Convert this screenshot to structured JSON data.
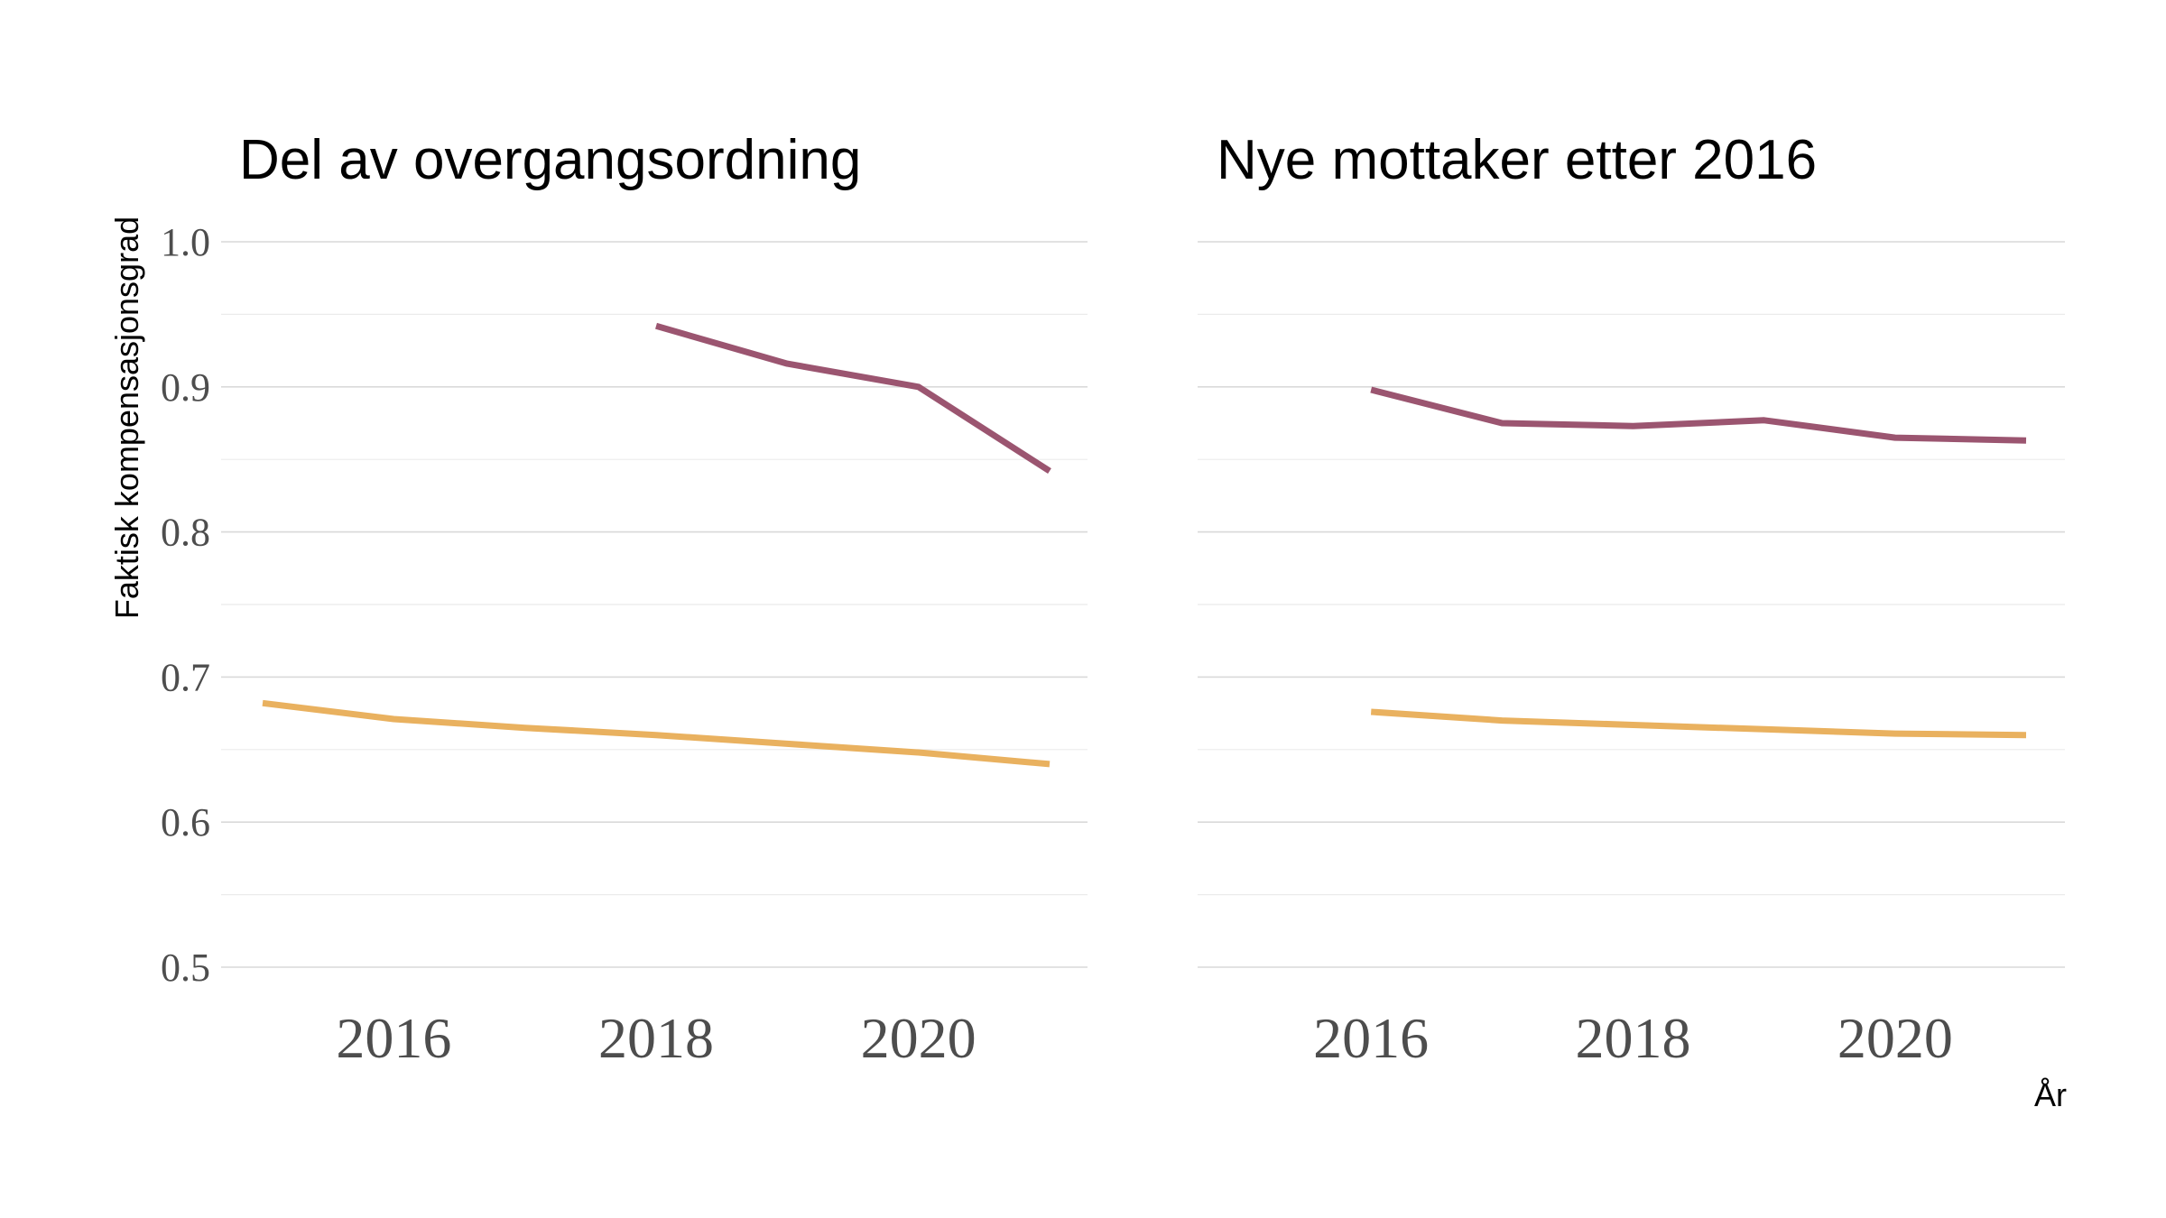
{
  "chart_data": [
    {
      "type": "line",
      "title": "Del av overgangsordning",
      "ylabel": "Faktisk kompensasjonsgrad",
      "xlabel": "",
      "ylim": [
        0.5,
        1.0
      ],
      "xlim": [
        2015,
        2021
      ],
      "xticks": [
        2016,
        2018,
        2020
      ],
      "yticks": [
        0.5,
        0.6,
        0.7,
        0.8,
        0.9,
        1.0
      ],
      "ytick_labels": [
        "0.5",
        "0.6",
        "0.7",
        "0.8",
        "0.9",
        "1.0"
      ],
      "grid": true,
      "series": [
        {
          "color": "#9b5570",
          "x": [
            2018,
            2019,
            2020,
            2021
          ],
          "y": [
            0.942,
            0.916,
            0.9,
            0.842
          ]
        },
        {
          "color": "#e9b15f",
          "x": [
            2015,
            2016,
            2017,
            2018,
            2019,
            2020,
            2021
          ],
          "y": [
            0.682,
            0.671,
            0.665,
            0.66,
            0.654,
            0.648,
            0.64
          ]
        }
      ]
    },
    {
      "type": "line",
      "title": "Nye mottaker etter 2016",
      "xlabel": "År",
      "ylabel": "",
      "ylim": [
        0.5,
        1.0
      ],
      "xlim": [
        2015,
        2021
      ],
      "xticks": [
        2016,
        2018,
        2020
      ],
      "yticks": [
        0.5,
        0.6,
        0.7,
        0.8,
        0.9,
        1.0
      ],
      "grid": true,
      "series": [
        {
          "color": "#9b5570",
          "x": [
            2016,
            2017,
            2018,
            2019,
            2020,
            2021
          ],
          "y": [
            0.898,
            0.875,
            0.873,
            0.877,
            0.865,
            0.863
          ]
        },
        {
          "color": "#e9b15f",
          "x": [
            2016,
            2017,
            2018,
            2019,
            2020,
            2021
          ],
          "y": [
            0.676,
            0.67,
            0.667,
            0.664,
            0.661,
            0.66
          ]
        }
      ]
    }
  ]
}
